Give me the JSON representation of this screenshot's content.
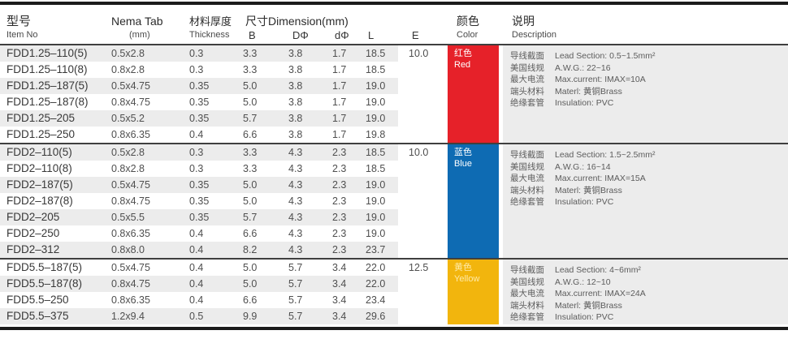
{
  "header": {
    "item_no": {
      "zh": "型号",
      "en": "Item No"
    },
    "nema_tab": {
      "main": "Nema Tab",
      "sub": "(mm)"
    },
    "thickness": {
      "zh": "材料厚度",
      "en": "Thickness"
    },
    "dimension_group_label": "尺寸Dimension(mm)",
    "dim_cols": {
      "b": "B",
      "d_large": "DΦ",
      "d_small": "dΦ",
      "l": "L",
      "e": "E"
    },
    "color": {
      "zh": "颜色",
      "en": "Color"
    },
    "description": {
      "zh": "说明",
      "en": "Description"
    }
  },
  "groups": [
    {
      "color_label": {
        "zh": "红色",
        "en": "Red"
      },
      "color_hex": "#e62129",
      "label_color": "#ffffff",
      "e_value": "10.0",
      "rows": [
        {
          "item": "FDD1.25–110(5)",
          "nema": "0.5x2.8",
          "thickness": "0.3",
          "b": "3.3",
          "d_large": "3.8",
          "d_small": "1.7",
          "l": "18.5"
        },
        {
          "item": "FDD1.25–110(8)",
          "nema": "0.8x2.8",
          "thickness": "0.3",
          "b": "3.3",
          "d_large": "3.8",
          "d_small": "1.7",
          "l": "18.5"
        },
        {
          "item": "FDD1.25–187(5)",
          "nema": "0.5x4.75",
          "thickness": "0.35",
          "b": "5.0",
          "d_large": "3.8",
          "d_small": "1.7",
          "l": "19.0"
        },
        {
          "item": "FDD1.25–187(8)",
          "nema": "0.8x4.75",
          "thickness": "0.35",
          "b": "5.0",
          "d_large": "3.8",
          "d_small": "1.7",
          "l": "19.0"
        },
        {
          "item": "FDD1.25–205",
          "nema": "0.5x5.2",
          "thickness": "0.35",
          "b": "5.7",
          "d_large": "3.8",
          "d_small": "1.7",
          "l": "19.0"
        },
        {
          "item": "FDD1.25–250",
          "nema": "0.8x6.35",
          "thickness": "0.4",
          "b": "6.6",
          "d_large": "3.8",
          "d_small": "1.7",
          "l": "19.8"
        }
      ],
      "description": [
        {
          "zh": "导线截面",
          "en": "Lead Section: 0.5~1.5mm²"
        },
        {
          "zh": "美国线规",
          "en": "A.W.G.: 22~16"
        },
        {
          "zh": "最大电流",
          "en": "Max.current: IMAX=10A"
        },
        {
          "zh": "端头材料",
          "en": "Materl: 黄铜Brass"
        },
        {
          "zh": "绝缘套管",
          "en": "Insulation: PVC"
        }
      ]
    },
    {
      "color_label": {
        "zh": "蓝色",
        "en": "Blue"
      },
      "color_hex": "#0e6bb3",
      "label_color": "#ffffff",
      "e_value": "10.0",
      "rows": [
        {
          "item": "FDD2–110(5)",
          "nema": "0.5x2.8",
          "thickness": "0.3",
          "b": "3.3",
          "d_large": "4.3",
          "d_small": "2.3",
          "l": "18.5"
        },
        {
          "item": "FDD2–110(8)",
          "nema": "0.8x2.8",
          "thickness": "0.3",
          "b": "3.3",
          "d_large": "4.3",
          "d_small": "2.3",
          "l": "18.5"
        },
        {
          "item": "FDD2–187(5)",
          "nema": "0.5x4.75",
          "thickness": "0.35",
          "b": "5.0",
          "d_large": "4.3",
          "d_small": "2.3",
          "l": "19.0"
        },
        {
          "item": "FDD2–187(8)",
          "nema": "0.8x4.75",
          "thickness": "0.35",
          "b": "5.0",
          "d_large": "4.3",
          "d_small": "2.3",
          "l": "19.0"
        },
        {
          "item": "FDD2–205",
          "nema": "0.5x5.5",
          "thickness": "0.35",
          "b": "5.7",
          "d_large": "4.3",
          "d_small": "2.3",
          "l": "19.0"
        },
        {
          "item": "FDD2–250",
          "nema": "0.8x6.35",
          "thickness": "0.4",
          "b": "6.6",
          "d_large": "4.3",
          "d_small": "2.3",
          "l": "19.0"
        },
        {
          "item": "FDD2–312",
          "nema": "0.8x8.0",
          "thickness": "0.4",
          "b": "8.2",
          "d_large": "4.3",
          "d_small": "2.3",
          "l": "23.7"
        }
      ],
      "description": [
        {
          "zh": "导线截面",
          "en": "Lead Section: 1.5~2.5mm²"
        },
        {
          "zh": "美国线规",
          "en": "A.W.G.: 16~14"
        },
        {
          "zh": "最大电流",
          "en": "Max.current: IMAX=15A"
        },
        {
          "zh": "端头材料",
          "en": "Materl: 黄铜Brass"
        },
        {
          "zh": "绝缘套管",
          "en": "Insulation: PVC"
        }
      ]
    },
    {
      "color_label": {
        "zh": "黄色",
        "en": "Yellow"
      },
      "color_hex": "#f2b50d",
      "label_color": "#ffeaa8",
      "e_value": "12.5",
      "rows": [
        {
          "item": "FDD5.5–187(5)",
          "nema": "0.5x4.75",
          "thickness": "0.4",
          "b": "5.0",
          "d_large": "5.7",
          "d_small": "3.4",
          "l": "22.0"
        },
        {
          "item": "FDD5.5–187(8)",
          "nema": "0.8x4.75",
          "thickness": "0.4",
          "b": "5.0",
          "d_large": "5.7",
          "d_small": "3.4",
          "l": "22.0"
        },
        {
          "item": "FDD5.5–250",
          "nema": "0.8x6.35",
          "thickness": "0.4",
          "b": "6.6",
          "d_large": "5.7",
          "d_small": "3.4",
          "l": "23.4"
        },
        {
          "item": "FDD5.5–375",
          "nema": "1.2x9.4",
          "thickness": "0.5",
          "b": "9.9",
          "d_large": "5.7",
          "d_small": "3.4",
          "l": "29.6"
        }
      ],
      "description": [
        {
          "zh": "导线截面",
          "en": "Lead Section: 4~6mm²"
        },
        {
          "zh": "美国线规",
          "en": "A.W.G.: 12~10"
        },
        {
          "zh": "最大电流",
          "en": "Max.current: IMAX=24A"
        },
        {
          "zh": "端头材料",
          "en": "Materl: 黄铜Brass"
        },
        {
          "zh": "绝缘套管",
          "en": "Insulation: PVC"
        }
      ]
    }
  ]
}
